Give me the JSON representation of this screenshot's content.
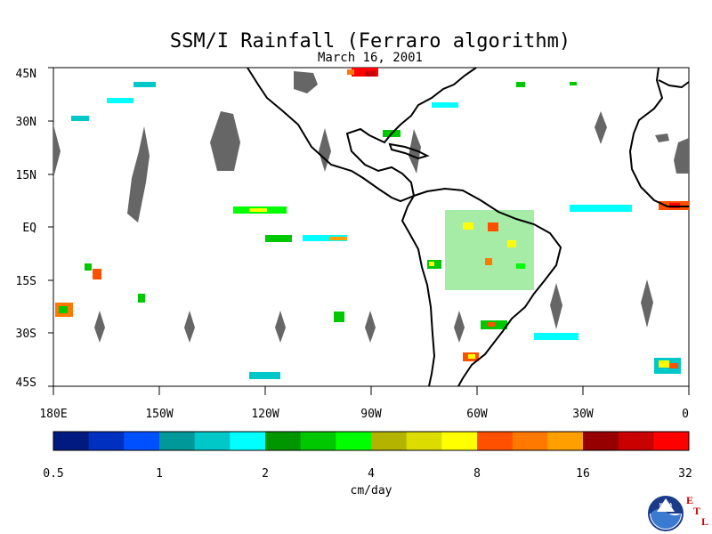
{
  "chart_data": {
    "type": "heatmap",
    "title": "SSM/I Rainfall (Ferraro algorithm)",
    "subtitle": "March 16, 2001",
    "x_ticks": [
      "180E",
      "150W",
      "120W",
      "90W",
      "60W",
      "30W",
      "0"
    ],
    "y_ticks": [
      "45N",
      "30N",
      "15N",
      "EQ",
      "15S",
      "30S",
      "45S"
    ],
    "xlim": [
      -180,
      0
    ],
    "ylim": [
      -45,
      45
    ],
    "colorbar": {
      "label": "cm/day",
      "ticks": [
        "0.5",
        "1",
        "2",
        "4",
        "8",
        "16",
        "32"
      ],
      "colors": [
        "#001a80",
        "#0030c0",
        "#0050ff",
        "#009898",
        "#00c8c8",
        "#00ffff",
        "#009600",
        "#00c800",
        "#00ff00",
        "#b4b400",
        "#dcdc00",
        "#ffff00",
        "#ff5000",
        "#ff7800",
        "#ffa000",
        "#960000",
        "#c80000",
        "#ff0000"
      ]
    },
    "missing_data_color": "#646464"
  },
  "logo": {
    "agency": "NOAA",
    "lab_letters": [
      "E",
      "T",
      "L"
    ]
  }
}
